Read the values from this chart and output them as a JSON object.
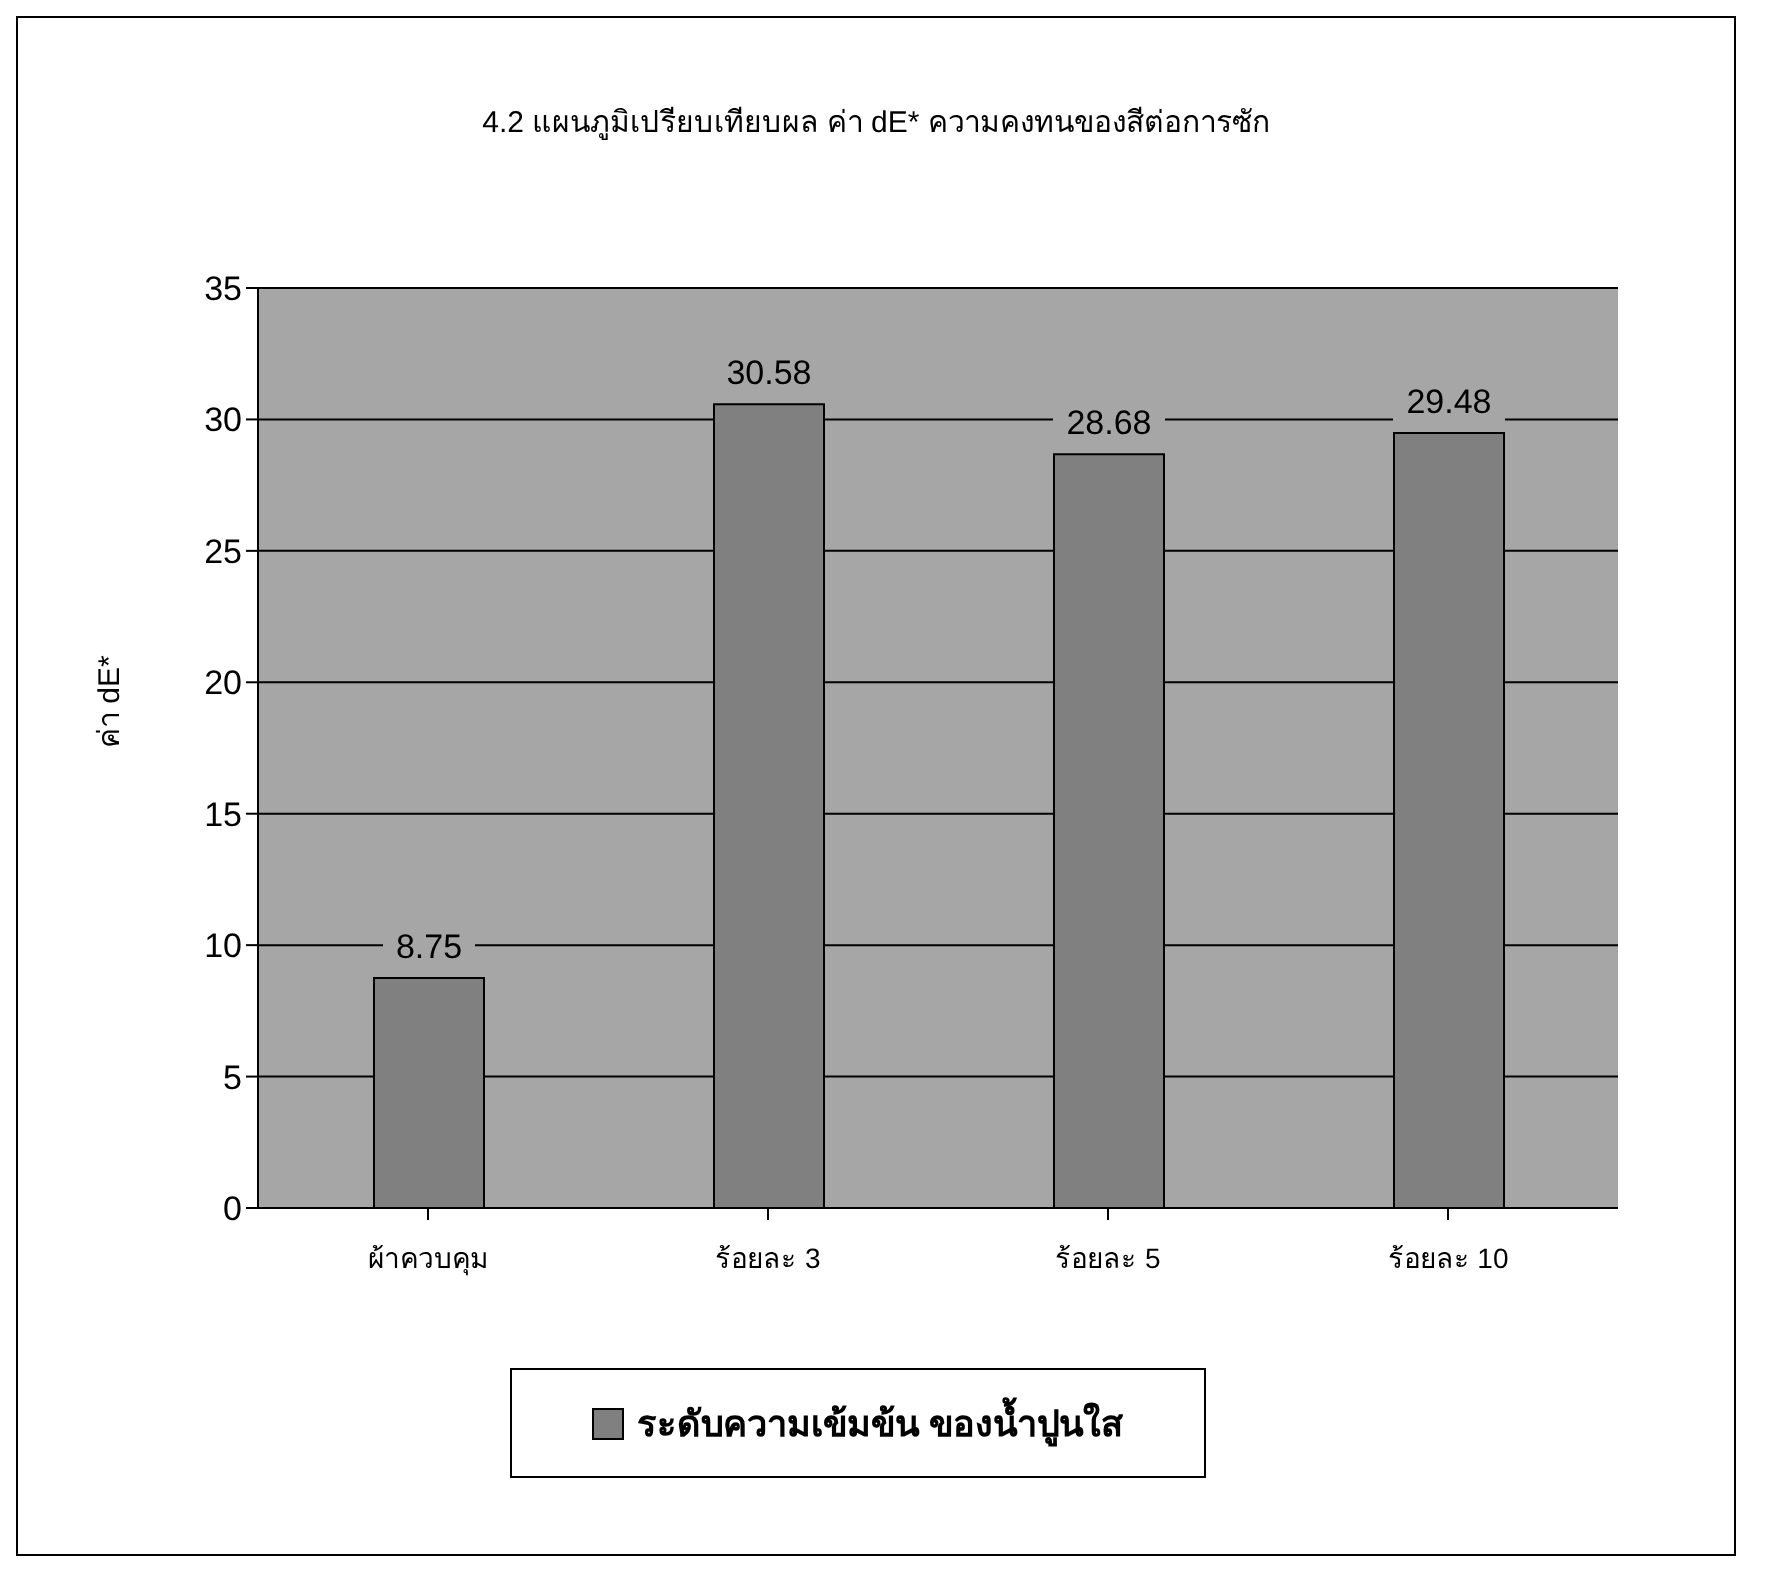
{
  "chart_data": {
    "type": "bar",
    "title": "4.2 แผนภูมิเปรียบเทียบผล ค่า dE* ความคงทนของสีต่อการซัก",
    "ylabel": "ค่า dE*",
    "categories": [
      "ผ้าควบคุม",
      "ร้อยละ 3",
      "ร้อยละ 5",
      "ร้อยละ 10"
    ],
    "series": [
      {
        "name": "ระดับความเข้มข้น ของน้ำปูนใส",
        "color": "#808080",
        "values": [
          8.75,
          30.58,
          28.68,
          29.48
        ]
      }
    ],
    "ylim": [
      0,
      35
    ],
    "yticks": [
      0,
      5,
      10,
      15,
      20,
      25,
      30,
      35
    ],
    "grid": "y",
    "data_labels": true,
    "legend": "bottom"
  }
}
